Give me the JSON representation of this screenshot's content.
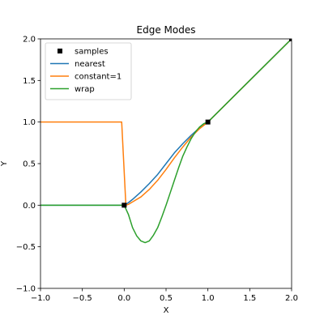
{
  "chart_data": {
    "type": "line",
    "title": "Edge Modes",
    "xlabel": "X",
    "ylabel": "Y",
    "xlim": [
      -1.0,
      2.0
    ],
    "ylim": [
      -1.0,
      2.0
    ],
    "xticks": [
      -1.0,
      -0.5,
      0.0,
      0.5,
      1.0,
      1.5,
      2.0
    ],
    "xtick_labels": [
      "−1.0",
      "−0.5",
      "0.0",
      "0.5",
      "1.0",
      "1.5",
      "2.0"
    ],
    "yticks": [
      -1.0,
      -0.5,
      0.0,
      0.5,
      1.0,
      1.5,
      2.0
    ],
    "ytick_labels": [
      "−1.0",
      "−0.5",
      "0.0",
      "0.5",
      "1.0",
      "1.5",
      "2.0"
    ],
    "grid": false,
    "legend_position": "top-left",
    "samples": {
      "name": "samples",
      "color": "#000000",
      "marker": "square",
      "x": [
        0,
        1,
        2
      ],
      "y": [
        0,
        1,
        2
      ]
    },
    "series": [
      {
        "name": "nearest",
        "color": "#1f77b4",
        "x": [
          -1.0,
          -0.02,
          0.0,
          0.05,
          0.1,
          0.2,
          0.3,
          0.4,
          0.5,
          0.6,
          0.7,
          0.8,
          0.9,
          1.0,
          1.5,
          2.0
        ],
        "y": [
          0.0,
          0.0,
          0.0,
          0.03,
          0.07,
          0.16,
          0.26,
          0.37,
          0.5,
          0.63,
          0.74,
          0.84,
          0.93,
          1.0,
          1.5,
          2.0
        ]
      },
      {
        "name": "constant=1",
        "color": "#ff7f0e",
        "x": [
          -1.0,
          -0.03,
          0.02,
          0.05,
          0.1,
          0.2,
          0.3,
          0.4,
          0.5,
          0.6,
          0.7,
          0.8,
          0.9,
          1.0,
          1.5,
          2.0
        ],
        "y": [
          1.0,
          1.0,
          0.0,
          0.01,
          0.04,
          0.1,
          0.19,
          0.3,
          0.43,
          0.57,
          0.7,
          0.82,
          0.92,
          1.0,
          1.5,
          2.0
        ]
      },
      {
        "name": "wrap",
        "color": "#2ca02c",
        "x": [
          -1.0,
          0.0,
          0.05,
          0.1,
          0.15,
          0.2,
          0.25,
          0.3,
          0.35,
          0.4,
          0.45,
          0.5,
          0.55,
          0.6,
          0.65,
          0.7,
          0.75,
          0.8,
          0.85,
          0.9,
          0.95,
          1.0,
          1.5,
          2.0
        ],
        "y": [
          0.0,
          0.0,
          -0.11,
          -0.27,
          -0.37,
          -0.43,
          -0.45,
          -0.43,
          -0.36,
          -0.27,
          -0.14,
          0.0,
          0.15,
          0.3,
          0.45,
          0.59,
          0.7,
          0.8,
          0.88,
          0.94,
          0.98,
          1.0,
          1.5,
          2.0
        ]
      }
    ]
  }
}
